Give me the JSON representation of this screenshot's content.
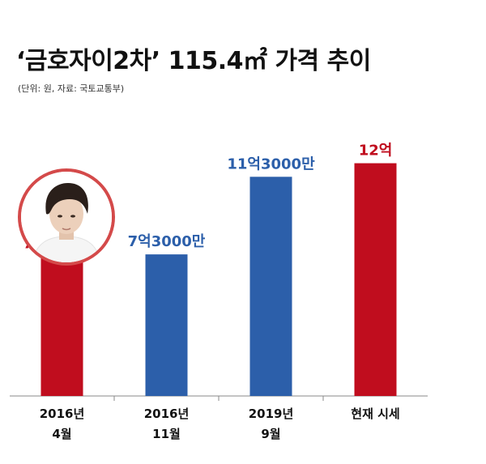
{
  "title": "‘금호자이2차’ 115.4㎡ 가격 추이",
  "subtitle": "(단위: 원, 자료: 국토교통부)",
  "colors": {
    "red": "#c00d1e",
    "blue": "#2c5faa",
    "axis": "#888888",
    "text": "#111111"
  },
  "chart_data": {
    "type": "bar",
    "categories": [
      [
        "2016년",
        "4월"
      ],
      [
        "2016년",
        "11월"
      ],
      [
        "2019년",
        "9월"
      ],
      [
        "현재 시세"
      ]
    ],
    "values": [
      720000000,
      730000000,
      1130000000,
      1200000000
    ],
    "value_labels": [
      "7억2000만",
      "7억3000만",
      "11억3000만",
      "12억"
    ],
    "bar_colors": [
      "red",
      "blue",
      "blue",
      "red"
    ],
    "title": "‘금호자이2차’ 115.4㎡ 가격 추이",
    "xlabel": "",
    "ylabel": "",
    "ylim": [
      0,
      1290000000
    ]
  }
}
